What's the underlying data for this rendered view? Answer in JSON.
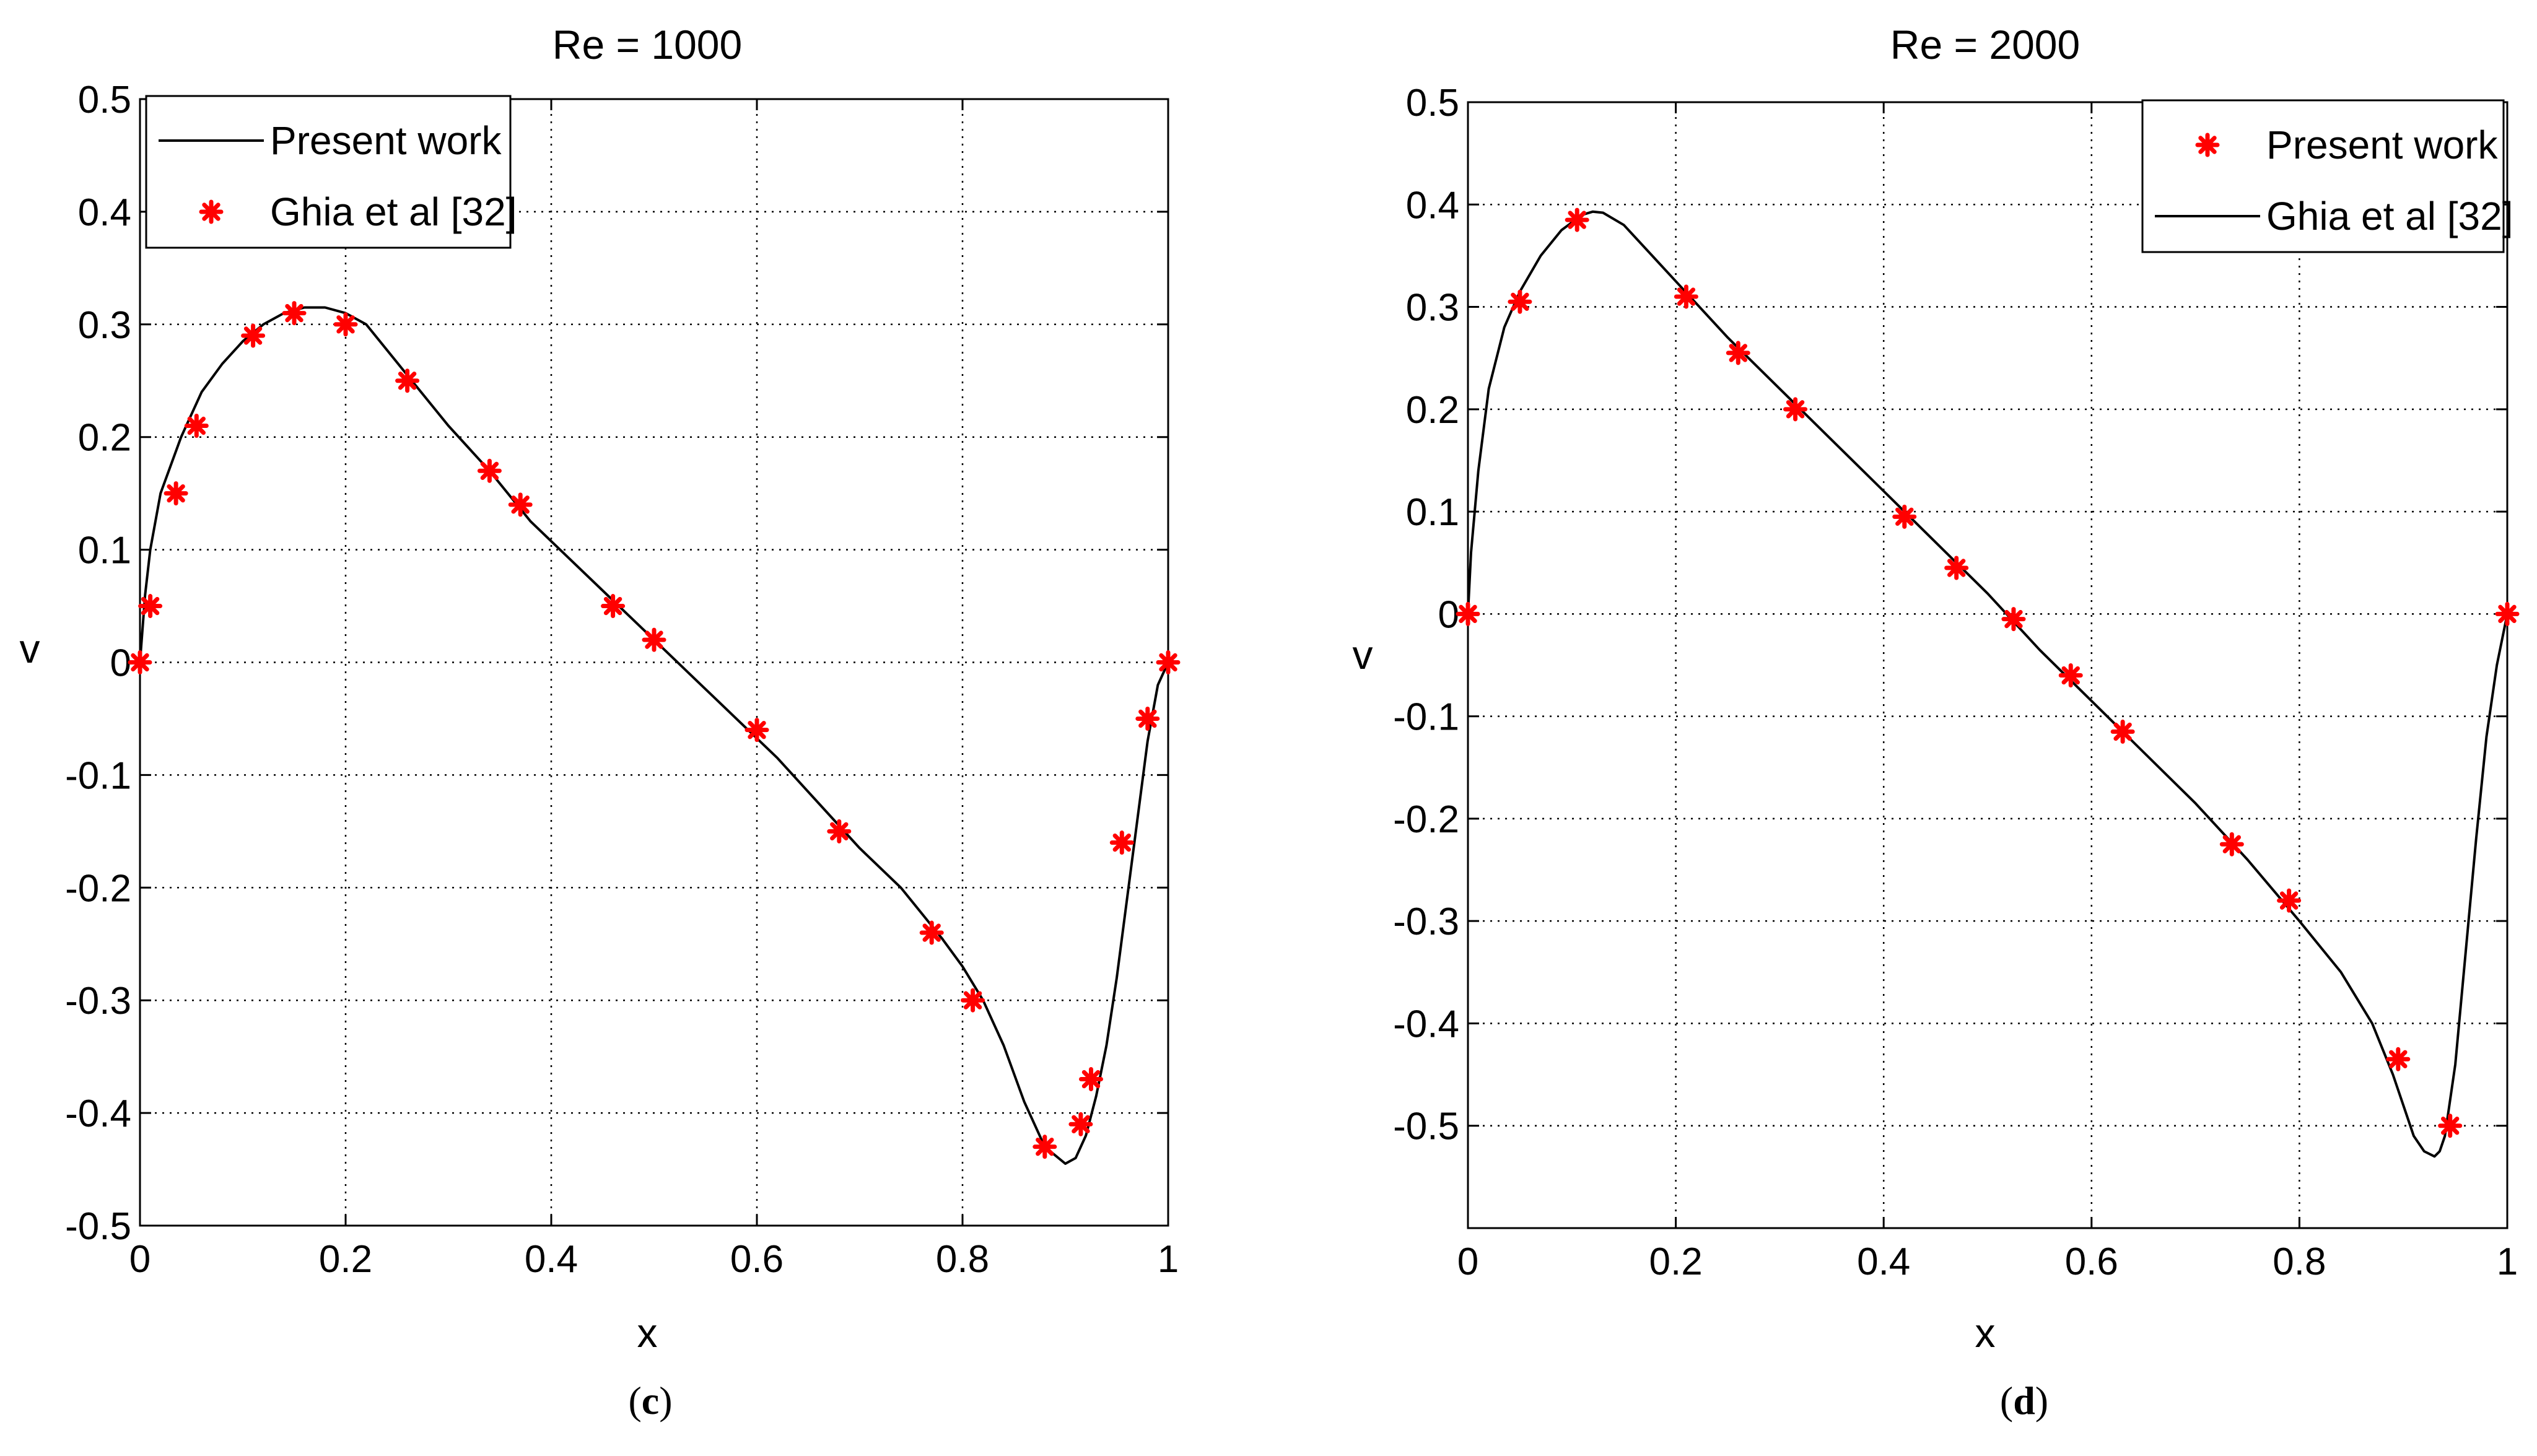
{
  "figure": {
    "captions": [
      {
        "paren_open": "(",
        "letter": "c",
        "paren_close": ")"
      },
      {
        "paren_open": "(",
        "letter": "d",
        "paren_close": ")"
      }
    ]
  },
  "chart_data": [
    {
      "type": "line",
      "title": "Re = 1000",
      "xlabel": "x",
      "ylabel": "v",
      "xlim": [
        0,
        1
      ],
      "ylim": [
        -0.5,
        0.5
      ],
      "xticks": [
        0,
        0.2,
        0.4,
        0.6,
        0.8,
        1
      ],
      "xtick_labels": [
        "0",
        "0.2",
        "0.4",
        "0.6",
        "0.8",
        "1"
      ],
      "yticks": [
        0.5,
        0.4,
        0.3,
        0.2,
        0.1,
        0,
        -0.1,
        -0.2,
        -0.3,
        -0.4,
        -0.5
      ],
      "ytick_labels": [
        "0.5",
        "0.4",
        "0.3",
        "0.2",
        "0.1",
        "0",
        "-0.1",
        "-0.2",
        "-0.3",
        "-0.4",
        "-0.5"
      ],
      "grid": true,
      "legend_position": "top-left",
      "legend": [
        {
          "label": "Present work",
          "style": "line",
          "color": "#000000"
        },
        {
          "label": "Ghia et al [32]",
          "style": "marker",
          "color": "#ff0000"
        }
      ],
      "series": [
        {
          "name": "Present work",
          "style": "line",
          "color": "#000000",
          "x": [
            0,
            0.005,
            0.01,
            0.02,
            0.04,
            0.06,
            0.08,
            0.1,
            0.12,
            0.14,
            0.16,
            0.18,
            0.2,
            0.22,
            0.26,
            0.3,
            0.34,
            0.38,
            0.42,
            0.46,
            0.5,
            0.54,
            0.58,
            0.62,
            0.66,
            0.7,
            0.74,
            0.78,
            0.8,
            0.82,
            0.84,
            0.86,
            0.88,
            0.9,
            0.91,
            0.92,
            0.93,
            0.94,
            0.95,
            0.96,
            0.97,
            0.98,
            0.99,
            1.0
          ],
          "y": [
            0,
            0.06,
            0.1,
            0.15,
            0.2,
            0.24,
            0.265,
            0.285,
            0.3,
            0.31,
            0.315,
            0.315,
            0.31,
            0.3,
            0.255,
            0.21,
            0.17,
            0.125,
            0.09,
            0.055,
            0.02,
            -0.015,
            -0.05,
            -0.085,
            -0.125,
            -0.165,
            -0.2,
            -0.245,
            -0.27,
            -0.3,
            -0.34,
            -0.39,
            -0.43,
            -0.445,
            -0.44,
            -0.42,
            -0.385,
            -0.34,
            -0.28,
            -0.21,
            -0.14,
            -0.07,
            -0.02,
            0
          ]
        },
        {
          "name": "Ghia et al [32]",
          "style": "marker",
          "color": "#ff0000",
          "x": [
            0,
            0.01,
            0.035,
            0.055,
            0.11,
            0.15,
            0.2,
            0.26,
            0.34,
            0.37,
            0.46,
            0.5,
            0.6,
            0.68,
            0.77,
            0.81,
            0.88,
            0.915,
            0.925,
            0.955,
            0.98,
            1.0
          ],
          "y": [
            0,
            0.05,
            0.15,
            0.21,
            0.29,
            0.31,
            0.3,
            0.25,
            0.17,
            0.14,
            0.05,
            0.02,
            -0.06,
            -0.15,
            -0.24,
            -0.3,
            -0.43,
            -0.41,
            -0.37,
            -0.16,
            -0.05,
            0
          ]
        }
      ]
    },
    {
      "type": "line",
      "title": "Re = 2000",
      "xlabel": "x",
      "ylabel": "v",
      "xlim": [
        0,
        1
      ],
      "ylim": [
        -0.6,
        0.5
      ],
      "xticks": [
        0,
        0.2,
        0.4,
        0.6,
        0.8,
        1
      ],
      "xtick_labels": [
        "0",
        "0.2",
        "0.4",
        "0.6",
        "0.8",
        "1"
      ],
      "yticks": [
        0.5,
        0.4,
        0.3,
        0.2,
        0.1,
        0,
        -0.1,
        -0.2,
        -0.3,
        -0.4,
        -0.5
      ],
      "ytick_labels": [
        "0.5",
        "0.4",
        "0.3",
        "0.2",
        "0.1",
        "0",
        "-0.1",
        "-0.2",
        "-0.3",
        "-0.4",
        "-0.5"
      ],
      "grid": true,
      "legend_position": "top-right",
      "legend": [
        {
          "label": "Present work",
          "style": "marker",
          "color": "#ff0000"
        },
        {
          "label": "Ghia et al [32]",
          "style": "line",
          "color": "#000000"
        }
      ],
      "series": [
        {
          "name": "Ghia et al [32]",
          "style": "line",
          "color": "#000000",
          "x": [
            0,
            0.003,
            0.01,
            0.02,
            0.035,
            0.05,
            0.07,
            0.09,
            0.11,
            0.12,
            0.13,
            0.15,
            0.2,
            0.25,
            0.3,
            0.35,
            0.4,
            0.45,
            0.5,
            0.55,
            0.6,
            0.65,
            0.7,
            0.75,
            0.8,
            0.84,
            0.87,
            0.89,
            0.9,
            0.91,
            0.92,
            0.93,
            0.935,
            0.94,
            0.95,
            0.96,
            0.97,
            0.98,
            0.99,
            1.0
          ],
          "y": [
            0,
            0.06,
            0.14,
            0.22,
            0.28,
            0.315,
            0.35,
            0.375,
            0.39,
            0.393,
            0.392,
            0.38,
            0.325,
            0.27,
            0.22,
            0.17,
            0.12,
            0.07,
            0.02,
            -0.035,
            -0.085,
            -0.135,
            -0.185,
            -0.24,
            -0.3,
            -0.35,
            -0.4,
            -0.45,
            -0.48,
            -0.51,
            -0.525,
            -0.53,
            -0.525,
            -0.51,
            -0.44,
            -0.33,
            -0.22,
            -0.12,
            -0.05,
            0
          ]
        },
        {
          "name": "Present work",
          "style": "marker",
          "color": "#ff0000",
          "x": [
            0,
            0.05,
            0.105,
            0.21,
            0.26,
            0.315,
            0.42,
            0.47,
            0.525,
            0.58,
            0.63,
            0.735,
            0.79,
            0.895,
            0.945,
            1.0
          ],
          "y": [
            0,
            0.305,
            0.385,
            0.31,
            0.255,
            0.2,
            0.095,
            0.045,
            -0.005,
            -0.06,
            -0.115,
            -0.225,
            -0.28,
            -0.435,
            -0.5,
            0
          ]
        }
      ]
    }
  ]
}
